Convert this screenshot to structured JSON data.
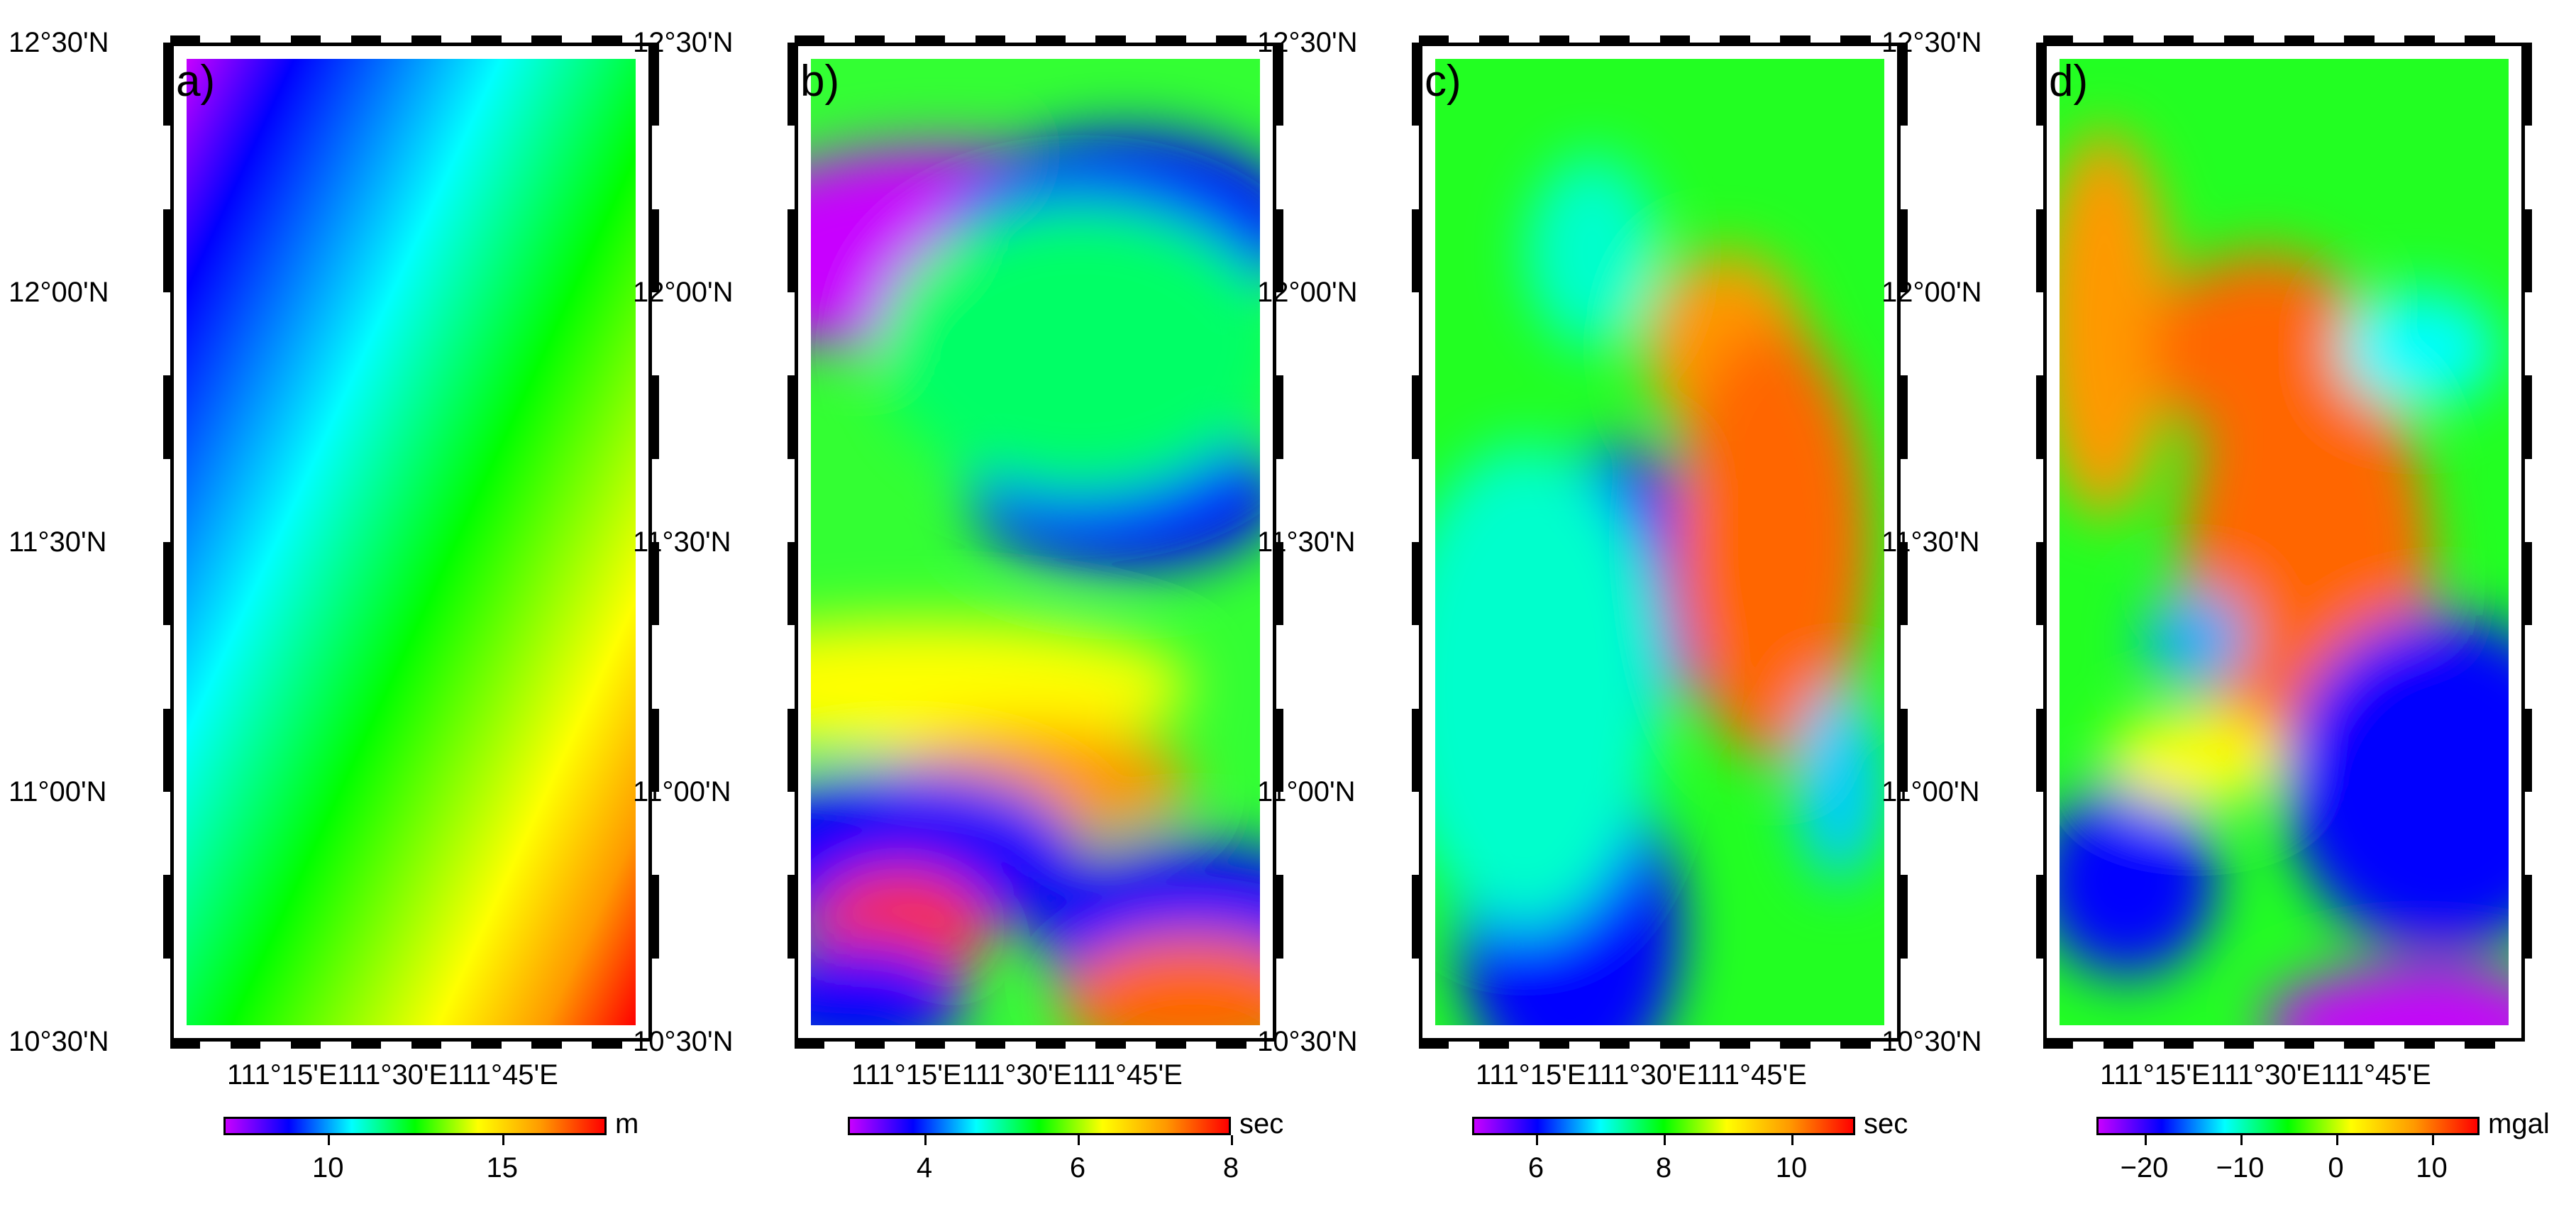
{
  "figure": {
    "panels": [
      {
        "label": "a)",
        "unit": "m",
        "colorbar_ticks": [
          "10",
          "15"
        ],
        "colorbar_range": [
          7,
          18
        ],
        "colorbar_tick_values": [
          10,
          15
        ],
        "field": "a"
      },
      {
        "label": "b)",
        "unit": "sec",
        "colorbar_ticks": [
          "4",
          "6",
          "8"
        ],
        "colorbar_range": [
          3,
          8
        ],
        "colorbar_tick_values": [
          4,
          6,
          8
        ],
        "field": "b"
      },
      {
        "label": "c)",
        "unit": "sec",
        "colorbar_ticks": [
          "6",
          "8",
          "10"
        ],
        "colorbar_range": [
          5,
          11
        ],
        "colorbar_tick_values": [
          6,
          8,
          10
        ],
        "field": "c"
      },
      {
        "label": "d)",
        "unit": "mgal",
        "colorbar_ticks": [
          "−20",
          "−10",
          "0",
          "10"
        ],
        "colorbar_range": [
          -25,
          15
        ],
        "colorbar_tick_values": [
          -20,
          -10,
          0,
          10
        ],
        "field": "d"
      }
    ],
    "lat_labels": [
      "12°30'N",
      "12°00'N",
      "11°30'N",
      "11°00'N",
      "10°30'N"
    ],
    "lon_labels": "111°15'E111°30'E111°45'E",
    "colormap": [
      "#c800ff",
      "#0000ff",
      "#00ffff",
      "#00ff00",
      "#ffff00",
      "#ff9900",
      "#ff0000"
    ]
  }
}
